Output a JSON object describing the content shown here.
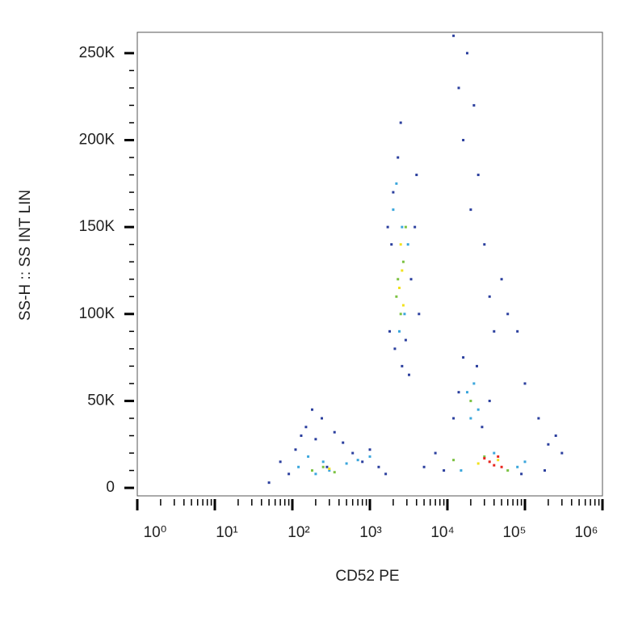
{
  "chart_data": {
    "type": "scatter",
    "x_label": "CD52 PE",
    "y_label": "SS-H :: SS INT LIN",
    "xlog": true,
    "xlim": [
      1,
      1000000
    ],
    "xticks": [
      {
        "value": 1,
        "label": "10⁰"
      },
      {
        "value": 10,
        "label": "10¹"
      },
      {
        "value": 100,
        "label": "10²"
      },
      {
        "value": 1000,
        "label": "10³"
      },
      {
        "value": 10000,
        "label": "10⁴"
      },
      {
        "value": 100000,
        "label": "10⁵"
      },
      {
        "value": 1000000,
        "label": "10⁶"
      }
    ],
    "ylim": [
      -4600,
      262000
    ],
    "yticks": [
      {
        "value": 0,
        "label": "0"
      },
      {
        "value": 50000,
        "label": "50K"
      },
      {
        "value": 100000,
        "label": "100K"
      },
      {
        "value": 150000,
        "label": "150K"
      },
      {
        "value": 200000,
        "label": "200K"
      },
      {
        "value": 250000,
        "label": "250K"
      }
    ],
    "series": [
      {
        "color": "#2b3f9e",
        "x": [
          50,
          70,
          90,
          110,
          130,
          150,
          180,
          200,
          240,
          280,
          350,
          450,
          600,
          800,
          1000,
          1300,
          1600,
          1800,
          1900,
          2000,
          2100,
          2300,
          2600,
          3200,
          4000,
          4300,
          3800,
          5000,
          7000,
          9000,
          12000,
          14000,
          16000,
          18000,
          20000,
          22000,
          25000,
          30000,
          35000,
          40000,
          50000,
          60000,
          80000,
          100000,
          150000,
          200000,
          250000,
          300000,
          180000,
          12000,
          14000,
          28000,
          35000,
          16000,
          24000,
          1700,
          2500,
          2900,
          3400,
          90000
        ],
        "y": [
          3000,
          15000,
          8000,
          22000,
          30000,
          35000,
          45000,
          28000,
          40000,
          12000,
          32000,
          26000,
          20000,
          15000,
          22000,
          12000,
          8000,
          90000,
          140000,
          170000,
          80000,
          190000,
          70000,
          65000,
          180000,
          100000,
          150000,
          12000,
          20000,
          10000,
          260000,
          230000,
          200000,
          250000,
          160000,
          220000,
          180000,
          140000,
          110000,
          90000,
          120000,
          100000,
          90000,
          60000,
          40000,
          25000,
          30000,
          20000,
          10000,
          40000,
          55000,
          35000,
          50000,
          75000,
          70000,
          150000,
          210000,
          85000,
          120000,
          8000
        ]
      },
      {
        "color": "#3aa6dc",
        "x": [
          120,
          160,
          200,
          250,
          300,
          500,
          700,
          1000,
          2000,
          2200,
          2400,
          2800,
          3100,
          2600,
          18000,
          22000,
          25000,
          20000,
          15000,
          40000,
          80000,
          100000
        ],
        "y": [
          12000,
          18000,
          8000,
          15000,
          10000,
          14000,
          16000,
          18000,
          160000,
          175000,
          90000,
          100000,
          140000,
          150000,
          55000,
          60000,
          45000,
          40000,
          10000,
          20000,
          12000,
          15000
        ]
      },
      {
        "color": "#7cc242",
        "x": [
          180,
          250,
          350,
          2300,
          2700,
          2500,
          2900,
          2200,
          20000,
          30000,
          60000,
          12000
        ],
        "y": [
          10000,
          12000,
          9000,
          120000,
          130000,
          100000,
          150000,
          110000,
          50000,
          18000,
          10000,
          16000
        ]
      },
      {
        "color": "#f2e21e",
        "x": [
          300,
          2400,
          2600,
          2500,
          2700,
          25000,
          45000
        ],
        "y": [
          11000,
          115000,
          125000,
          140000,
          105000,
          14000,
          16000
        ]
      },
      {
        "color": "#e8261f",
        "x": [
          35000,
          40000,
          50000,
          30000,
          45000
        ],
        "y": [
          15000,
          13000,
          12000,
          17000,
          18000
        ]
      }
    ]
  }
}
